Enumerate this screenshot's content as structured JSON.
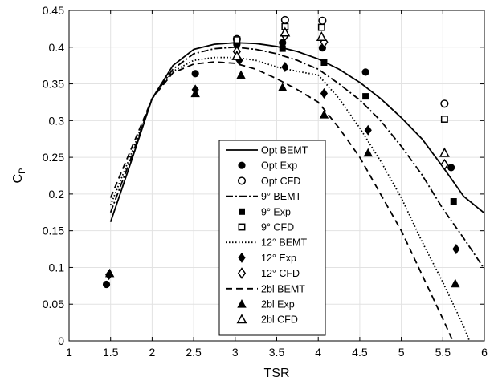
{
  "chart_data": {
    "type": "line",
    "title": "",
    "xlabel": "TSR",
    "ylabel_main": "C",
    "ylabel_sub": "P",
    "xlim": [
      1,
      6
    ],
    "ylim": [
      0,
      0.45
    ],
    "xticks": [
      1,
      1.5,
      2,
      2.5,
      3,
      3.5,
      4,
      4.5,
      5,
      5.5,
      6
    ],
    "xtick_labels": [
      "1",
      "1.5",
      "2",
      "2.5",
      "3",
      "3.5",
      "4",
      "4.5",
      "5",
      "5.5",
      "6"
    ],
    "yticks": [
      0,
      0.05,
      0.1,
      0.15,
      0.2,
      0.25,
      0.3,
      0.35,
      0.4,
      0.45
    ],
    "ytick_labels": [
      "0",
      "0.05",
      "0.1",
      "0.15",
      "0.2",
      "0.25",
      "0.3",
      "0.35",
      "0.4",
      "0.45"
    ],
    "grid": true,
    "legend_position": "center-bottom",
    "series": [
      {
        "name": "Opt BEMT",
        "kind": "line",
        "dash": "solid",
        "x": [
          1.5,
          1.75,
          2.0,
          2.25,
          2.5,
          2.75,
          3.0,
          3.25,
          3.5,
          3.75,
          4.0,
          4.25,
          4.5,
          4.75,
          5.0,
          5.25,
          5.5,
          5.75,
          6.0
        ],
        "y": [
          0.162,
          0.245,
          0.33,
          0.375,
          0.397,
          0.404,
          0.406,
          0.405,
          0.401,
          0.394,
          0.384,
          0.37,
          0.352,
          0.33,
          0.304,
          0.275,
          0.237,
          0.197,
          0.174
        ]
      },
      {
        "name": "Opt Exp",
        "kind": "marker",
        "marker": "circle-filled",
        "x": [
          1.45,
          2.52,
          3.02,
          3.57,
          4.05,
          4.57,
          5.6
        ],
        "y": [
          0.077,
          0.364,
          0.404,
          0.406,
          0.399,
          0.366,
          0.236
        ]
      },
      {
        "name": "Opt CFD",
        "kind": "marker",
        "marker": "circle-open",
        "x": [
          3.02,
          3.6,
          4.05,
          5.52
        ],
        "y": [
          0.411,
          0.437,
          0.436,
          0.323
        ]
      },
      {
        "name": "9° BEMT",
        "kind": "line",
        "dash": "dashdot",
        "x": [
          1.5,
          1.75,
          2.0,
          2.25,
          2.5,
          2.75,
          3.0,
          3.25,
          3.5,
          3.75,
          4.0,
          4.25,
          4.5,
          4.75,
          5.0,
          5.25,
          5.5,
          5.75,
          6.0
        ],
        "y": [
          0.175,
          0.25,
          0.33,
          0.37,
          0.391,
          0.398,
          0.4,
          0.397,
          0.391,
          0.382,
          0.37,
          0.35,
          0.328,
          0.3,
          0.265,
          0.226,
          0.18,
          0.14,
          0.098
        ]
      },
      {
        "name": "9° Exp",
        "kind": "marker",
        "marker": "square-filled",
        "x": [
          3.02,
          3.57,
          4.07,
          4.57,
          5.63
        ],
        "y": [
          0.409,
          0.398,
          0.379,
          0.333,
          0.19
        ]
      },
      {
        "name": "9° CFD",
        "kind": "marker",
        "marker": "square-open",
        "x": [
          3.02,
          3.6,
          4.04,
          5.52
        ],
        "y": [
          0.41,
          0.428,
          0.427,
          0.302
        ]
      },
      {
        "name": "12° BEMT",
        "kind": "line",
        "dash": "dotted",
        "x": [
          1.5,
          1.75,
          2.0,
          2.25,
          2.5,
          2.75,
          3.0,
          3.25,
          3.5,
          3.75,
          4.0,
          4.25,
          4.5,
          4.75,
          5.0,
          5.25,
          5.5,
          5.75,
          5.82
        ],
        "y": [
          0.185,
          0.255,
          0.33,
          0.367,
          0.382,
          0.386,
          0.386,
          0.382,
          0.373,
          0.367,
          0.362,
          0.33,
          0.29,
          0.245,
          0.195,
          0.135,
          0.08,
          0.02,
          0.0
        ]
      },
      {
        "name": "12° Exp",
        "kind": "marker",
        "marker": "diamond-filled",
        "x": [
          1.48,
          2.52,
          3.05,
          3.6,
          4.07,
          4.6,
          5.66
        ],
        "y": [
          0.09,
          0.342,
          0.382,
          0.373,
          0.337,
          0.287,
          0.125
        ]
      },
      {
        "name": "12° CFD",
        "kind": "marker",
        "marker": "diamond-open",
        "x": [
          3.02,
          3.6,
          4.07,
          5.52
        ],
        "y": [
          0.394,
          0.416,
          0.407,
          0.24
        ]
      },
      {
        "name": "2bl BEMT",
        "kind": "line",
        "dash": "dashed",
        "x": [
          1.5,
          1.75,
          2.0,
          2.25,
          2.5,
          2.75,
          3.0,
          3.25,
          3.5,
          3.75,
          4.0,
          4.25,
          4.5,
          4.75,
          5.0,
          5.25,
          5.5,
          5.62
        ],
        "y": [
          0.195,
          0.262,
          0.33,
          0.365,
          0.377,
          0.38,
          0.378,
          0.37,
          0.357,
          0.342,
          0.325,
          0.29,
          0.25,
          0.2,
          0.15,
          0.09,
          0.03,
          0.0
        ]
      },
      {
        "name": "2bl Exp",
        "kind": "marker",
        "marker": "triangle-filled",
        "x": [
          1.49,
          2.52,
          3.07,
          3.57,
          4.07,
          4.6,
          5.65
        ],
        "y": [
          0.092,
          0.337,
          0.362,
          0.345,
          0.308,
          0.256,
          0.078
        ]
      },
      {
        "name": "2bl CFD",
        "kind": "marker",
        "marker": "triangle-open",
        "x": [
          3.02,
          3.6,
          4.04,
          5.52
        ],
        "y": [
          0.388,
          0.42,
          0.414,
          0.256
        ]
      }
    ]
  }
}
